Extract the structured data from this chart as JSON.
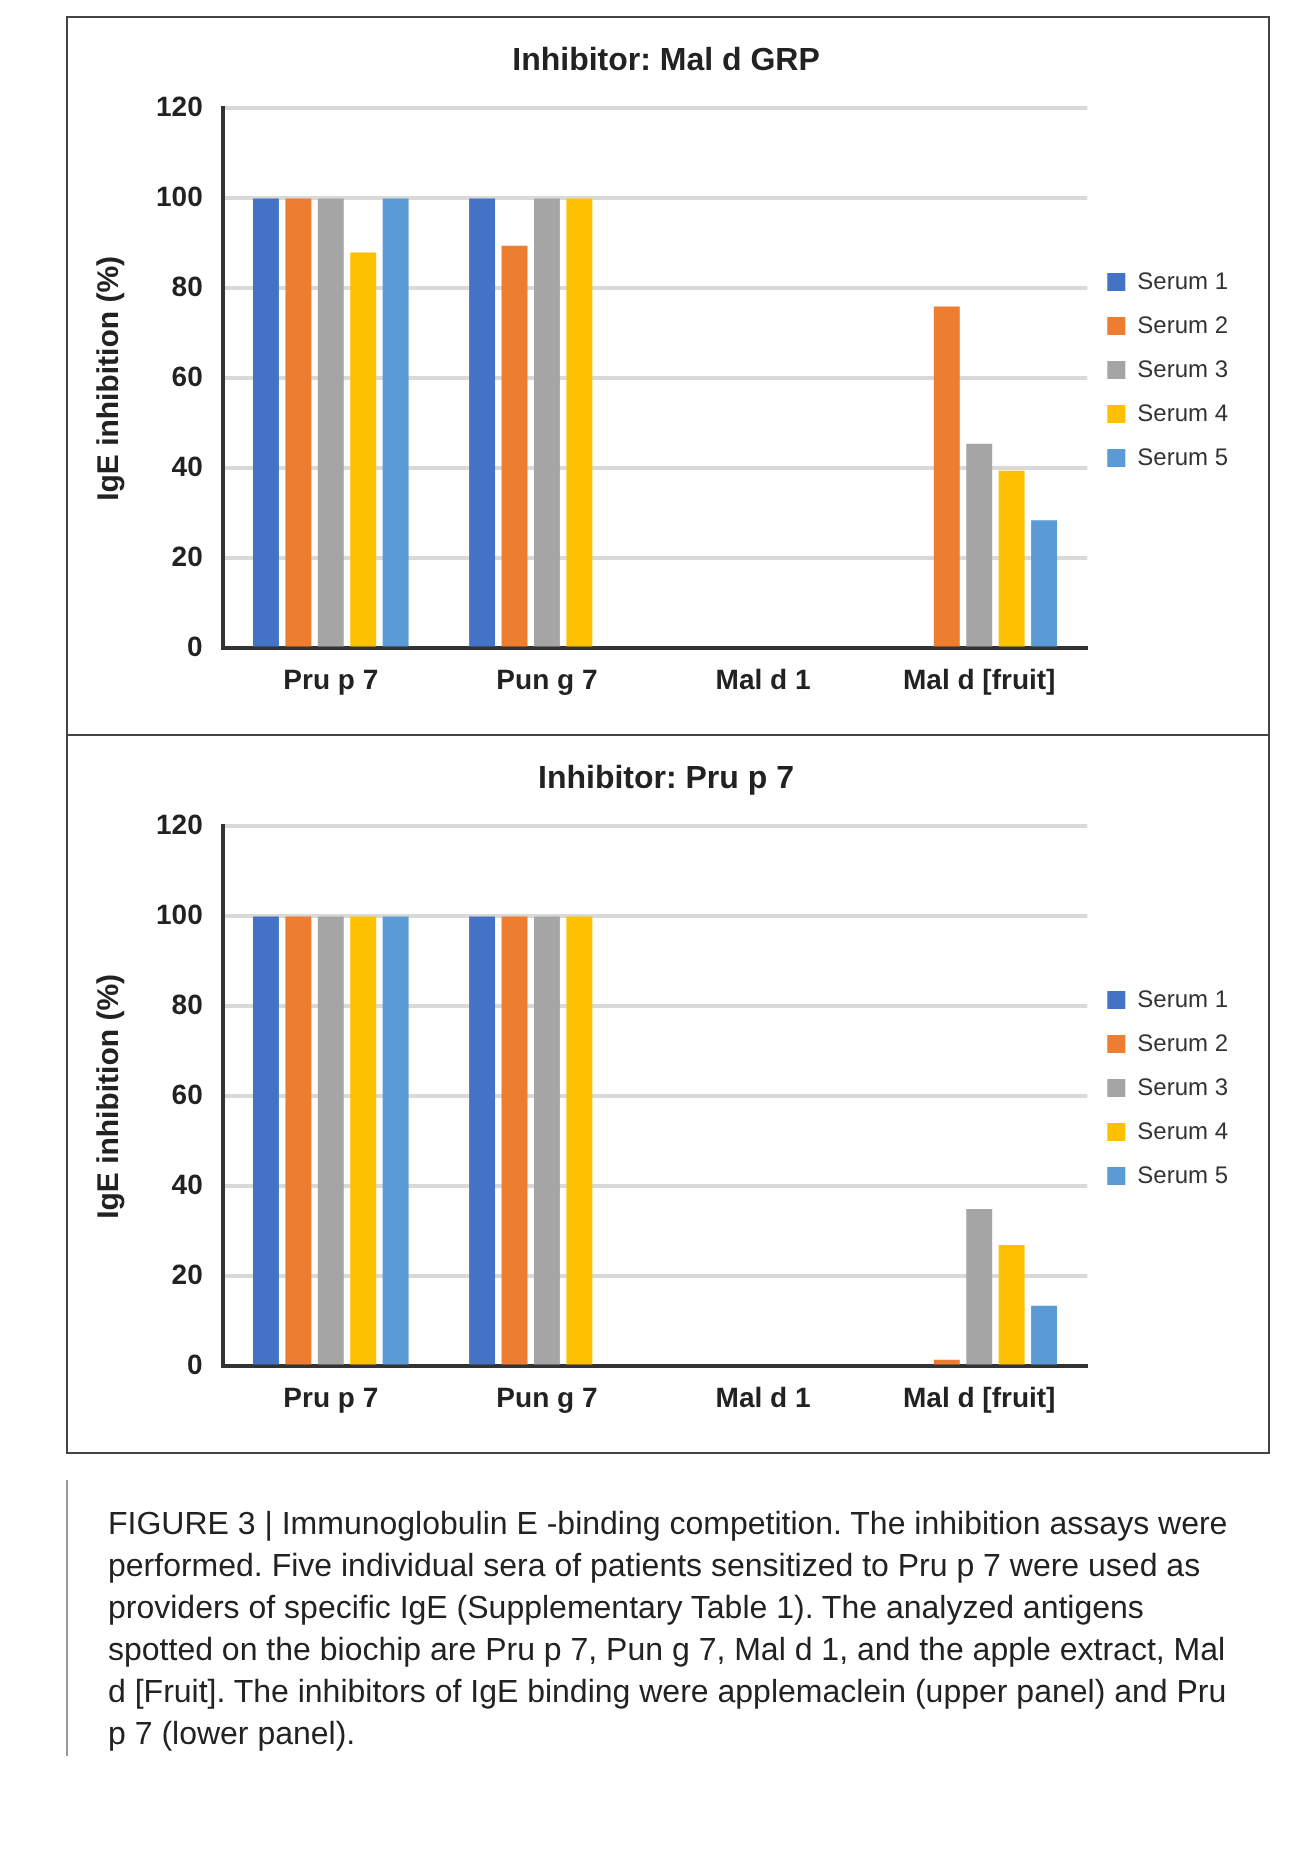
{
  "chart_data": [
    {
      "type": "bar",
      "title": "Inhibitor: Mal d GRP",
      "ylabel": "IgE inhibition (%)",
      "categories": [
        "Pru p 7",
        "Pun g 7",
        "Mal d 1",
        "Mal d [fruit]"
      ],
      "series": [
        {
          "name": "Serum 1",
          "color": "#4472c4",
          "values": [
            100,
            100,
            null,
            null
          ]
        },
        {
          "name": "Serum 2",
          "color": "#ed7d31",
          "values": [
            100,
            89.5,
            null,
            76
          ]
        },
        {
          "name": "Serum 3",
          "color": "#a5a5a5",
          "values": [
            100,
            100,
            null,
            45.5
          ]
        },
        {
          "name": "Serum 4",
          "color": "#ffc000",
          "values": [
            88,
            100,
            null,
            39.5
          ]
        },
        {
          "name": "Serum 5",
          "color": "#5b9bd5",
          "values": [
            100,
            null,
            null,
            28.5
          ]
        }
      ],
      "ylim": [
        0,
        120
      ],
      "yticks": [
        0,
        20,
        40,
        60,
        80,
        100,
        120
      ],
      "grid": "y",
      "legend": "right"
    },
    {
      "type": "bar",
      "title": "Inhibitor: Pru p 7",
      "ylabel": "IgE inhibition (%)",
      "categories": [
        "Pru p 7",
        "Pun g 7",
        "Mal d 1",
        "Mal d [fruit]"
      ],
      "series": [
        {
          "name": "Serum 1",
          "color": "#4472c4",
          "values": [
            100,
            100,
            null,
            null
          ]
        },
        {
          "name": "Serum 2",
          "color": "#ed7d31",
          "values": [
            100,
            100,
            null,
            1.5
          ]
        },
        {
          "name": "Serum 3",
          "color": "#a5a5a5",
          "values": [
            100,
            100,
            null,
            35
          ]
        },
        {
          "name": "Serum 4",
          "color": "#ffc000",
          "values": [
            100,
            100,
            null,
            27
          ]
        },
        {
          "name": "Serum 5",
          "color": "#5b9bd5",
          "values": [
            100,
            null,
            null,
            13.5
          ]
        }
      ],
      "ylim": [
        0,
        120
      ],
      "yticks": [
        0,
        20,
        40,
        60,
        80,
        100,
        120
      ],
      "grid": "y",
      "legend": "right",
      "annotations": [
        "FIGURE 3 | Immunoglobulin E -binding competition. The inhibition assays were performed. Five individual sera of patients sensitized to Pru p 7 were used as providers of specific IgE (Supplementary Table 1). The analyzed antigens spotted on the biochip are Pru p 7, Pun g 7, Mal d 1, and the apple extract, Mal d [Fruit]. The inhibitors of IgE binding were applemaclein (upper panel) and Pru p 7 (lower panel)."
      ]
    }
  ]
}
